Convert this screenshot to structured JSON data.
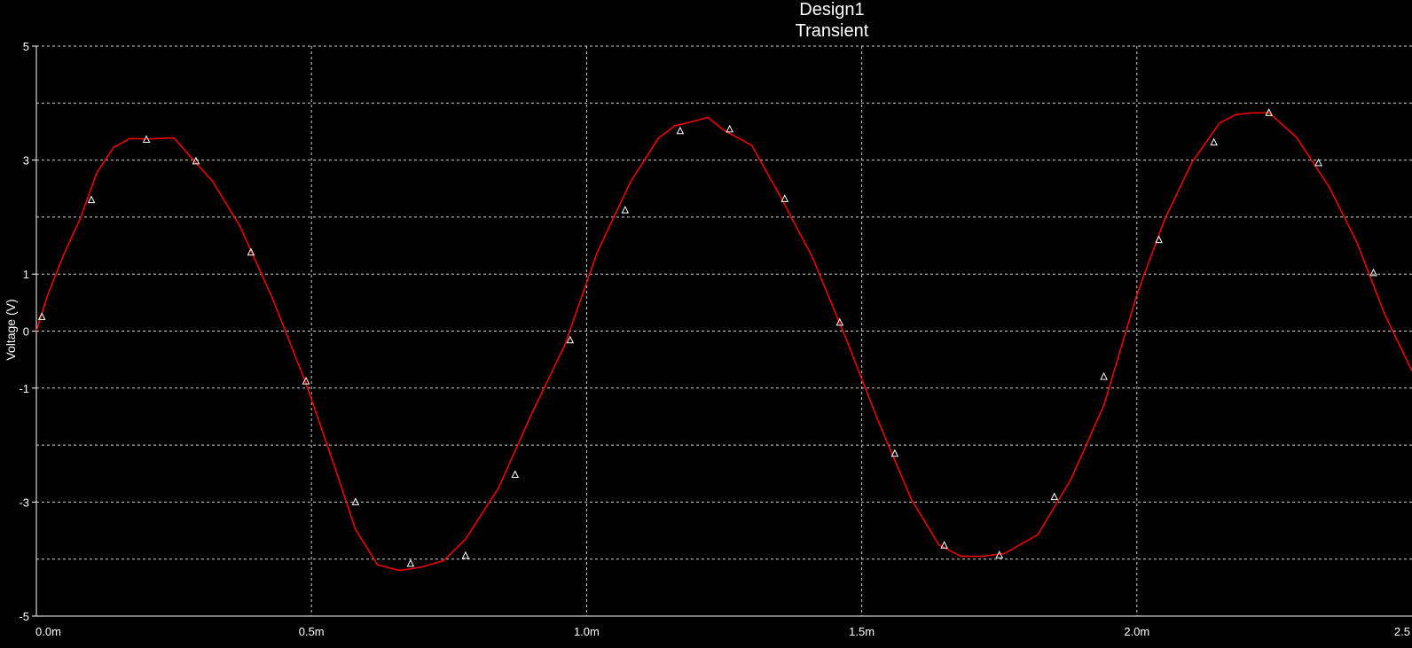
{
  "chart_data": {
    "type": "line",
    "title": "Design1",
    "subtitle": "Transient",
    "xlabel": "",
    "ylabel": "Voltage (V)",
    "xlim": [
      0,
      2.5
    ],
    "ylim": [
      -5,
      5
    ],
    "x_tick_values": [
      0,
      0.5,
      1.0,
      1.5,
      2.0,
      2.5
    ],
    "x_tick_labels": [
      "0.0m",
      "0.5m",
      "1.0m",
      "1.5m",
      "2.0m",
      "2.5"
    ],
    "y_tick_values": [
      5,
      3,
      1,
      0,
      -1,
      -3,
      -5
    ],
    "y_tick_labels": [
      "5",
      "3",
      "1",
      "0",
      "-1",
      "-3",
      "-5"
    ],
    "grid": true,
    "series": [
      {
        "color": "#ff0000",
        "marker": "triangle",
        "marker_color": "#ffffff",
        "x": [
          0.0,
          0.02,
          0.05,
          0.08,
          0.11,
          0.14,
          0.17,
          0.2,
          0.25,
          0.29,
          0.32,
          0.37,
          0.43,
          0.49,
          0.54,
          0.58,
          0.62,
          0.66,
          0.7,
          0.74,
          0.78,
          0.84,
          0.9,
          0.96,
          1.02,
          1.08,
          1.13,
          1.16,
          1.19,
          1.22,
          1.25,
          1.3,
          1.35,
          1.41,
          1.47,
          1.53,
          1.59,
          1.64,
          1.68,
          1.72,
          1.76,
          1.82,
          1.88,
          1.94,
          2.0,
          2.05,
          2.1,
          2.15,
          2.18,
          2.21,
          2.24,
          2.29,
          2.35,
          2.4,
          2.45,
          2.5
        ],
        "y": [
          0.0,
          0.62,
          1.35,
          1.98,
          2.78,
          3.22,
          3.38,
          3.37,
          3.39,
          2.95,
          2.63,
          1.84,
          0.55,
          -0.92,
          -2.32,
          -3.48,
          -4.1,
          -4.2,
          -4.14,
          -4.03,
          -3.65,
          -2.75,
          -1.45,
          -0.25,
          1.4,
          2.62,
          3.38,
          3.6,
          3.67,
          3.75,
          3.52,
          3.26,
          2.4,
          1.3,
          -0.1,
          -1.58,
          -2.95,
          -3.75,
          -3.95,
          -3.95,
          -3.9,
          -3.57,
          -2.6,
          -1.3,
          0.64,
          1.95,
          2.96,
          3.65,
          3.8,
          3.83,
          3.83,
          3.4,
          2.52,
          1.55,
          0.3,
          -0.7
        ]
      }
    ],
    "markers": {
      "x": [
        0.01,
        0.1,
        0.2,
        0.29,
        0.39,
        0.49,
        0.58,
        0.68,
        0.78,
        0.87,
        0.97,
        1.07,
        1.17,
        1.26,
        1.36,
        1.46,
        1.56,
        1.65,
        1.75,
        1.85,
        1.94,
        2.04,
        2.14,
        2.24,
        2.33,
        2.43
      ],
      "y": [
        0.25,
        2.3,
        3.36,
        2.98,
        1.38,
        -0.88,
        -3.0,
        -4.08,
        -3.94,
        -2.52,
        -0.16,
        2.12,
        3.51,
        3.54,
        2.32,
        0.15,
        -2.15,
        -3.76,
        -3.93,
        -2.91,
        -0.8,
        1.6,
        3.31,
        3.83,
        2.95,
        1.02
      ]
    }
  }
}
